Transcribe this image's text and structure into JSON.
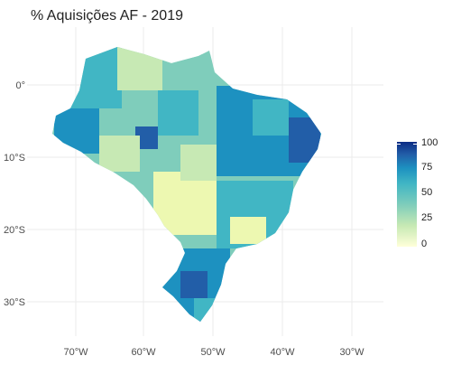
{
  "title": "% Aquisições AF - 2019",
  "map": {
    "y_ticks": [
      "0°",
      "10°S",
      "20°S",
      "30°S"
    ],
    "x_ticks": [
      "70°W",
      "60°W",
      "50°W",
      "40°W",
      "30°W"
    ]
  },
  "legend": {
    "ticks": [
      "100",
      "75",
      "50",
      "25",
      "0"
    ],
    "scale_min": 0,
    "scale_max": 100
  },
  "colors": {
    "low": "#ffffd9",
    "mid_low": "#c7e9b4",
    "mid": "#41b6c4",
    "mid_high": "#225ea8",
    "high": "#0c2c84",
    "grid": "#ebebeb"
  }
}
